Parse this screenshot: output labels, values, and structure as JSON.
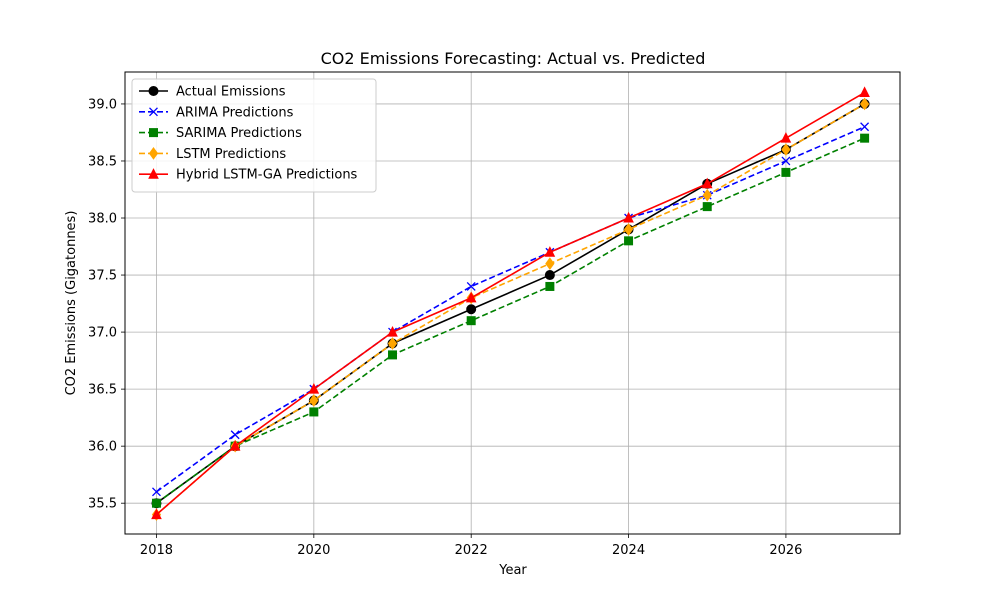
{
  "chart_data": {
    "type": "line",
    "title": "CO2 Emissions Forecasting: Actual vs. Predicted",
    "xlabel": "Year",
    "ylabel": "CO2 Emissions (Gigatonnes)",
    "x": [
      2018,
      2019,
      2020,
      2021,
      2022,
      2023,
      2024,
      2025,
      2026,
      2027
    ],
    "xlim": [
      2017.6,
      2027.45
    ],
    "ylim": [
      35.23,
      39.28
    ],
    "xticks": [
      2018,
      2020,
      2022,
      2024,
      2026
    ],
    "yticks": [
      35.5,
      36.0,
      36.5,
      37.0,
      37.5,
      38.0,
      38.5,
      39.0
    ],
    "xtick_labels": [
      "2018",
      "2020",
      "2022",
      "2024",
      "2026"
    ],
    "ytick_labels": [
      "35.5",
      "36.0",
      "36.5",
      "37.0",
      "37.5",
      "38.0",
      "38.5",
      "39.0"
    ],
    "grid": true,
    "legend_position": "top-left",
    "series": [
      {
        "name": "Actual Emissions",
        "values": [
          35.5,
          36.0,
          36.4,
          36.9,
          37.2,
          37.5,
          37.9,
          38.3,
          38.6,
          39.0
        ],
        "color": "#000000",
        "linestyle": "solid",
        "marker": "circle"
      },
      {
        "name": "ARIMA Predictions",
        "values": [
          35.6,
          36.1,
          36.5,
          37.0,
          37.4,
          37.7,
          38.0,
          38.2,
          38.5,
          38.8
        ],
        "color": "#0000ff",
        "linestyle": "dashed",
        "marker": "x"
      },
      {
        "name": "SARIMA Predictions",
        "values": [
          35.5,
          36.0,
          36.3,
          36.8,
          37.1,
          37.4,
          37.8,
          38.1,
          38.4,
          38.7
        ],
        "color": "#008000",
        "linestyle": "dashed",
        "marker": "square"
      },
      {
        "name": "LSTM Predictions",
        "values": [
          35.4,
          36.0,
          36.4,
          36.9,
          37.3,
          37.6,
          37.9,
          38.2,
          38.6,
          39.0
        ],
        "color": "#ffa500",
        "linestyle": "dashed",
        "marker": "diamond"
      },
      {
        "name": "Hybrid LSTM-GA Predictions",
        "values": [
          35.4,
          36.0,
          36.5,
          37.0,
          37.3,
          37.7,
          38.0,
          38.3,
          38.7,
          39.1
        ],
        "color": "#ff0000",
        "linestyle": "solid",
        "marker": "triangle"
      }
    ]
  }
}
